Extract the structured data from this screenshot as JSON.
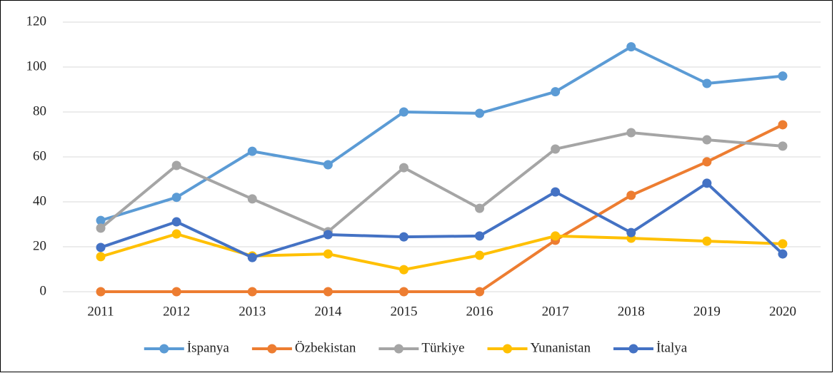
{
  "chart_data": {
    "type": "line",
    "categories": [
      "2011",
      "2012",
      "2013",
      "2014",
      "2015",
      "2016",
      "2017",
      "2018",
      "2019",
      "2020"
    ],
    "series": [
      {
        "name": "İspanya",
        "color": "#5b9bd5",
        "values": [
          31.7,
          42,
          62.5,
          56.5,
          80,
          79.4,
          89,
          109,
          92.7,
          96
        ]
      },
      {
        "name": "Özbekistan",
        "color": "#ed7d31",
        "values": [
          0,
          0,
          0,
          0,
          0,
          0,
          22.9,
          42.9,
          57.8,
          74.3
        ]
      },
      {
        "name": "Türkiye",
        "color": "#a5a5a5",
        "values": [
          28.3,
          56.2,
          41.3,
          26.7,
          55.2,
          37.1,
          63.5,
          70.8,
          67.6,
          64.8
        ]
      },
      {
        "name": "Yunanistan",
        "color": "#ffc000",
        "values": [
          15.6,
          25.7,
          15.9,
          16.8,
          9.8,
          16.2,
          24.8,
          23.8,
          22.5,
          21.3
        ]
      },
      {
        "name": "İtalya",
        "color": "#4472c4",
        "values": [
          19.7,
          31.1,
          15.2,
          25.4,
          24.4,
          24.8,
          44.4,
          26.3,
          48.3,
          16.8
        ]
      }
    ],
    "ylim": [
      0,
      120
    ],
    "yticks": [
      0,
      20,
      40,
      60,
      80,
      100,
      120
    ],
    "grid": true,
    "legend": "bottom"
  }
}
